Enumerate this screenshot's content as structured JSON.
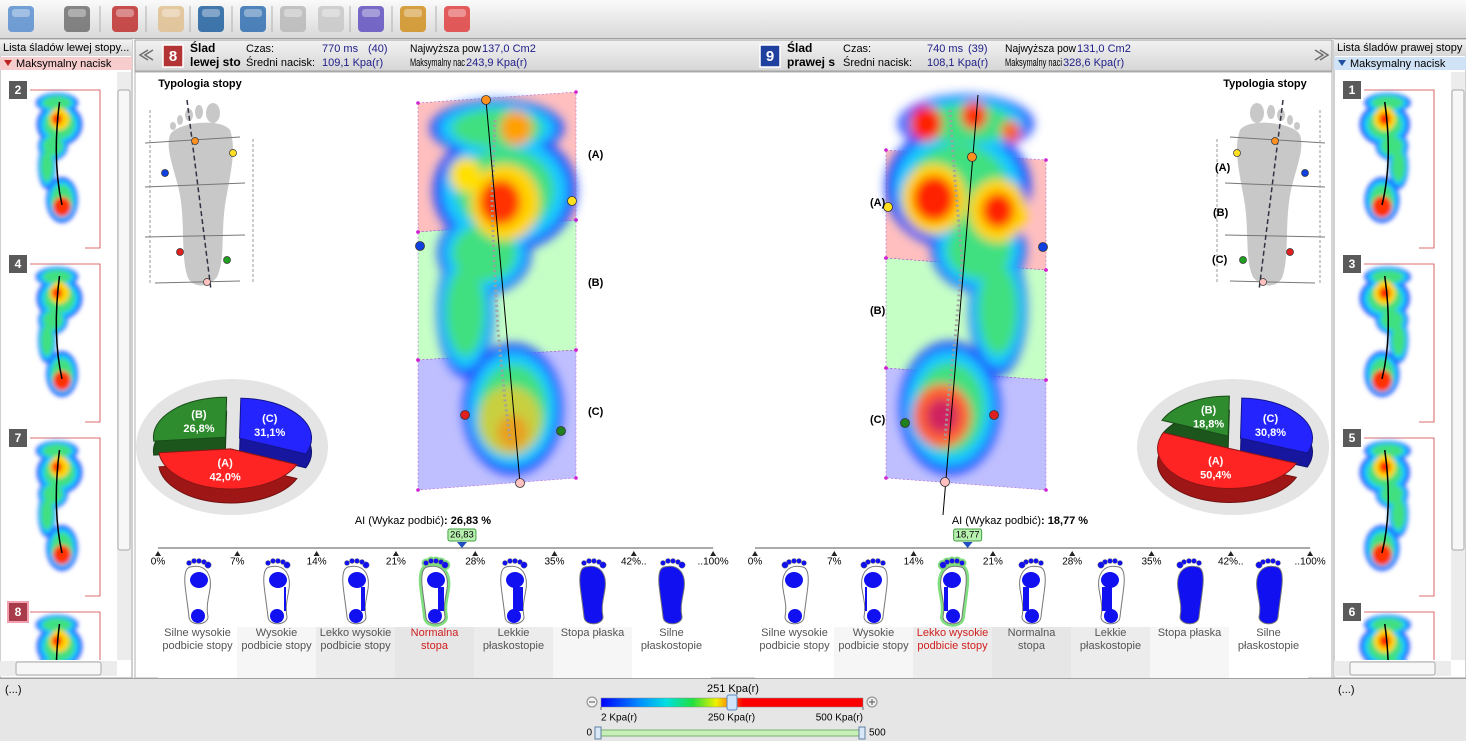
{
  "left_list": {
    "title": "Lista śladów lewej stopy...",
    "mode": "Maksymalny nacisk",
    "items": [
      "2",
      "4",
      "7",
      "8"
    ],
    "selected": 3
  },
  "right_list": {
    "title": "Lista śladów prawej stopy",
    "mode": "Maksymalny nacisk",
    "items": [
      "1",
      "3",
      "5",
      "6"
    ]
  },
  "left_print": {
    "number": "8",
    "title": [
      "Ślad",
      "lewej sto"
    ],
    "stats": [
      {
        "label": "Czas:",
        "value": "770 ms",
        "extra": "(40)"
      },
      {
        "label": "Średni nacisk:",
        "value": "109,1 Kpa(r)"
      },
      {
        "label": "Najwyższa pow",
        "value": "137,0 Cm2"
      },
      {
        "label": "Maksymalny nac",
        "value": "243,9 Kpa(r)"
      }
    ],
    "typology_title": "Typologia stopy",
    "zone_labels": [
      "(A)",
      "(B)",
      "(C)"
    ],
    "pie": {
      "type": "pie",
      "categories": [
        "(A)",
        "(B)",
        "(C)"
      ],
      "values": [
        42.0,
        26.8,
        31.1
      ],
      "value_labels": [
        "42,0%",
        "26,8%",
        "31,1%"
      ],
      "colors": [
        "#ff2424",
        "#2e8b2e",
        "#2424ff"
      ]
    },
    "ai": {
      "label": "AI (Wykaz podbić)",
      "value": 26.83,
      "value_label": "26,83",
      "value_text": ": 26,83 %"
    },
    "scale_ticks": [
      {
        "value": 0,
        "label": "0%"
      },
      {
        "value": 7,
        "label": "7%"
      },
      {
        "value": 14,
        "label": "14%"
      },
      {
        "value": 21,
        "label": "21%"
      },
      {
        "value": 28,
        "label": "28%"
      },
      {
        "value": 35,
        "label": "35%"
      },
      {
        "value": 42,
        "label": "42%.."
      },
      {
        "value": 100,
        "label": "..100%"
      }
    ],
    "categories": [
      "Silne wysokie podbicie stopy",
      "Wysokie podbicie stopy",
      "Lekko wysokie podbicie stopy",
      "Normalna stopa",
      "Lekkie płaskostopie",
      "Stopa płaska",
      "Silne płaskostopie"
    ],
    "selected_category": 3
  },
  "right_print": {
    "number": "9",
    "title": [
      "Ślad",
      "prawej s"
    ],
    "stats": [
      {
        "label": "Czas:",
        "value": "740 ms",
        "extra": "(39)"
      },
      {
        "label": "Średni nacisk:",
        "value": "108,1 Kpa(r)"
      },
      {
        "label": "Najwyższa pow",
        "value": "131,0 Cm2"
      },
      {
        "label": "Maksymalny naci",
        "value": "328,6 Kpa(r)"
      }
    ],
    "typology_title": "Typologia stopy",
    "zone_labels": [
      "(A)",
      "(B)",
      "(C)"
    ],
    "pie": {
      "type": "pie",
      "categories": [
        "(A)",
        "(B)",
        "(C)"
      ],
      "values": [
        50.4,
        18.8,
        30.8
      ],
      "value_labels": [
        "50,4%",
        "18,8%",
        "30,8%"
      ],
      "colors": [
        "#ff2424",
        "#2e8b2e",
        "#2424ff"
      ]
    },
    "ai": {
      "label": "AI (Wykaz podbić)",
      "value": 18.77,
      "value_label": "18,77",
      "value_text": ": 18,77 %"
    },
    "scale_ticks": [
      {
        "value": 0,
        "label": "0%"
      },
      {
        "value": 7,
        "label": "7%"
      },
      {
        "value": 14,
        "label": "14%"
      },
      {
        "value": 21,
        "label": "21%"
      },
      {
        "value": 28,
        "label": "28%"
      },
      {
        "value": 35,
        "label": "35%"
      },
      {
        "value": 42,
        "label": "42%.."
      },
      {
        "value": 100,
        "label": "..100%"
      }
    ],
    "categories": [
      "Silne wysokie podbicie stopy",
      "Wysokie podbicie stopy",
      "Lekko wysokie podbicie stopy",
      "Normalna stopa",
      "Lekkie płaskostopie",
      "Stopa płaska",
      "Silne płaskostopie"
    ],
    "selected_category": 2
  },
  "color_scale": {
    "current": {
      "value": 251,
      "label": "251 Kpa(r)"
    },
    "ticks": [
      {
        "value": 2,
        "label": "2 Kpa(r)"
      },
      {
        "value": 250,
        "label": "250 Kpa(r)"
      },
      {
        "value": 500,
        "label": "500 Kpa(r)"
      }
    ],
    "range": [
      0,
      500
    ]
  },
  "footer": {
    "status": [
      "(...)",
      "(...)"
    ]
  }
}
